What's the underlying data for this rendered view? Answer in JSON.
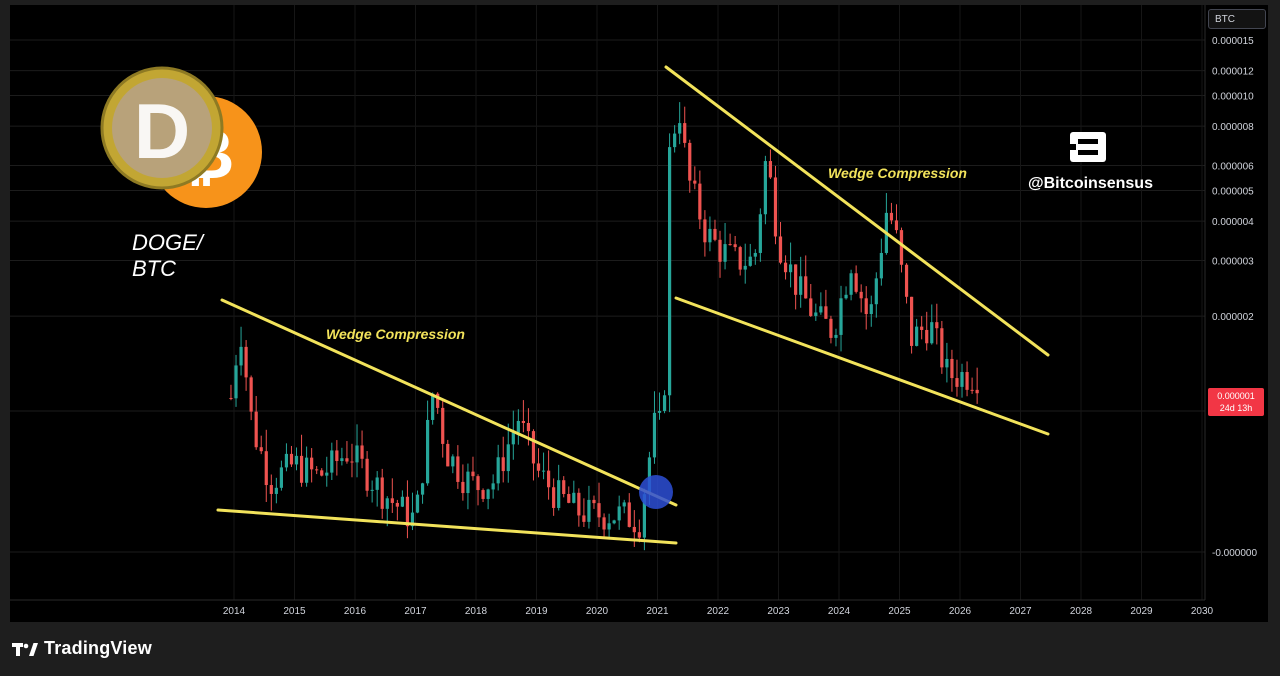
{
  "pair_label_line1": "DOGE/",
  "pair_label_line2": "BTC",
  "currency_badge": "BTC",
  "watermark": "@Bitcoinsensus",
  "footer_brand": "TradingView",
  "price_tag": {
    "value": "0.000001",
    "countdown": "24d 13h"
  },
  "colors": {
    "up": "#26a69a",
    "down": "#ef5350",
    "trendline": "#f2e35b",
    "breakout_marker": "#2d4fd6",
    "background": "#000000"
  },
  "chart_data": {
    "type": "candlestick",
    "scale": "log",
    "y_tick_labels": [
      "0.000015",
      "0.000012",
      "0.000010",
      "0.000008",
      "0.000006",
      "0.000005",
      "0.000004",
      "0.000003",
      "0.000002",
      "0.000001",
      "-0.000000"
    ],
    "x_tick_labels": [
      "2014",
      "2015",
      "2016",
      "2017",
      "2018",
      "2019",
      "2020",
      "2021",
      "2022",
      "2023",
      "2024",
      "2025",
      "2026",
      "2027",
      "2028",
      "2029",
      "2030"
    ],
    "annotations": [
      "Wedge Compression",
      "Wedge Compression"
    ],
    "x": [
      2013.95,
      2014.1,
      2014.3,
      2014.6,
      2015.0,
      2015.4,
      2015.9,
      2016.3,
      2016.6,
      2017.0,
      2017.3,
      2017.5,
      2017.8,
      2018.0,
      2018.3,
      2018.7,
      2019.0,
      2019.3,
      2019.7,
      2020.0,
      2020.4,
      2020.7,
      2020.95,
      2021.1,
      2021.2,
      2021.35,
      2021.5,
      2021.8,
      2022.0,
      2022.3,
      2022.6,
      2022.8,
      2023.0,
      2023.3,
      2023.6,
      2023.9,
      2024.2,
      2024.5,
      2024.8,
      2024.95,
      2025.2,
      2025.5,
      2025.8,
      2026.0,
      2026.3
    ],
    "close": [
      1.1e-06,
      1.9e-06,
      9e-07,
      6e-07,
      6.8e-07,
      6.2e-07,
      7.5e-07,
      6e-07,
      5.2e-07,
      4.5e-07,
      1.2e-06,
      7.5e-07,
      6.2e-07,
      5.8e-07,
      6e-07,
      9.5e-07,
      6.5e-07,
      5.5e-07,
      4.8e-07,
      4.7e-07,
      4.7e-07,
      4.5e-07,
      9e-07,
      9e-07,
      6.5e-06,
      9.5e-06,
      5.5e-06,
      3.7e-06,
      3.3e-06,
      3e-06,
      3e-06,
      6.5e-06,
      3.5e-06,
      2.5e-06,
      2e-06,
      1.8e-06,
      3e-06,
      1.9e-06,
      4.5e-06,
      3.5e-06,
      1.7e-06,
      1.9e-06,
      1.3e-06,
      1.3e-06,
      1.3e-06
    ]
  }
}
